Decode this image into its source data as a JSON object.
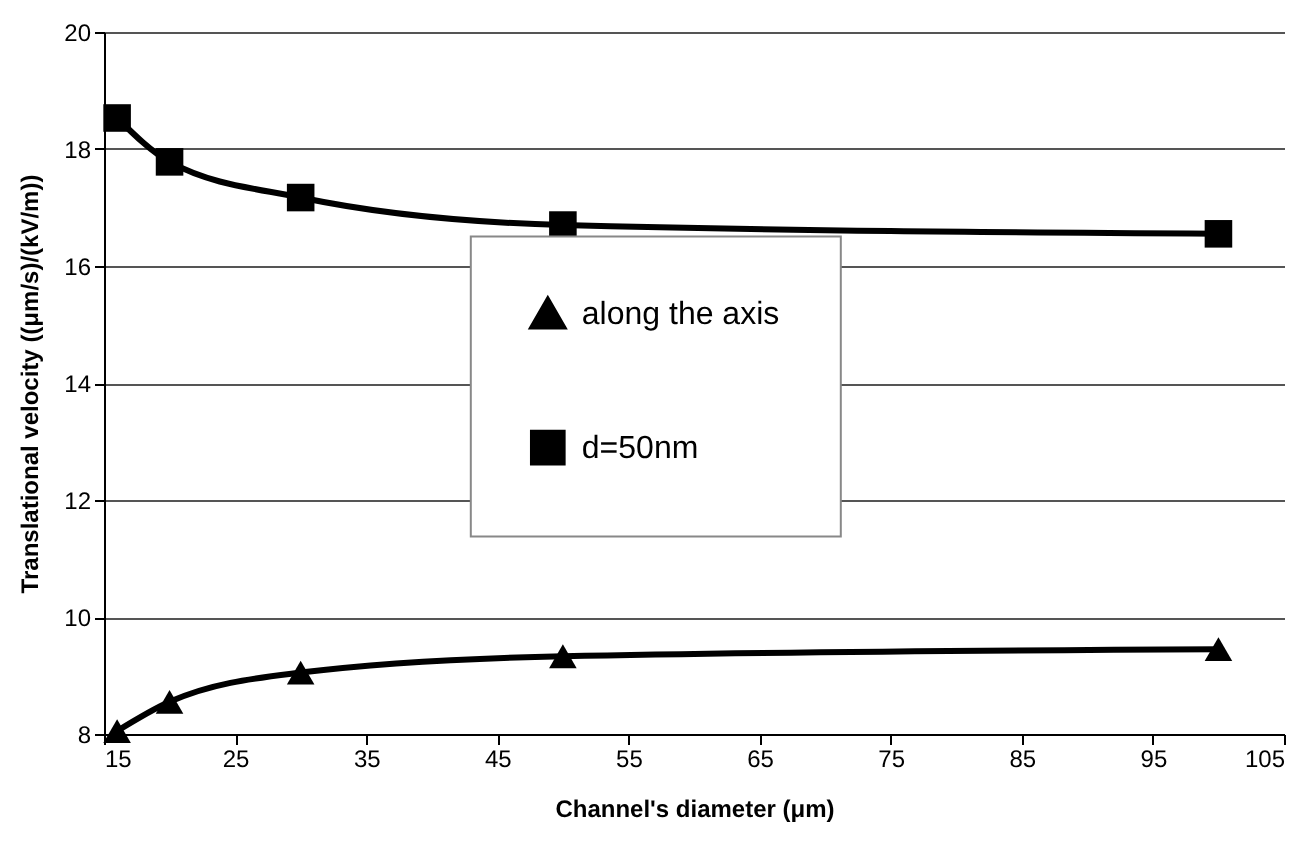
{
  "chart_data": {
    "type": "line",
    "xlabel": "Channel's diameter (μm)",
    "ylabel": "Translational velocity ((μm/s)/(kV/m))",
    "x": [
      16,
      20,
      30,
      50,
      100
    ],
    "series": [
      {
        "name": "along the axis",
        "color": "#000000",
        "marker": "triangle",
        "values": [
          8.05,
          8.55,
          9.05,
          9.33,
          9.45
        ]
      },
      {
        "name": "d=50nm",
        "color": "#000000",
        "marker": "square",
        "values": [
          18.53,
          17.78,
          17.17,
          16.7,
          16.55
        ]
      }
    ],
    "xlim": [
      15,
      105
    ],
    "xticks": [
      15,
      25,
      35,
      45,
      55,
      65,
      75,
      85,
      95,
      105
    ],
    "ylim": [
      8,
      20
    ],
    "yticks": [
      8,
      10,
      12,
      14,
      16,
      18,
      20
    ],
    "grid": "y",
    "legend": "center",
    "line_style": "solid"
  }
}
